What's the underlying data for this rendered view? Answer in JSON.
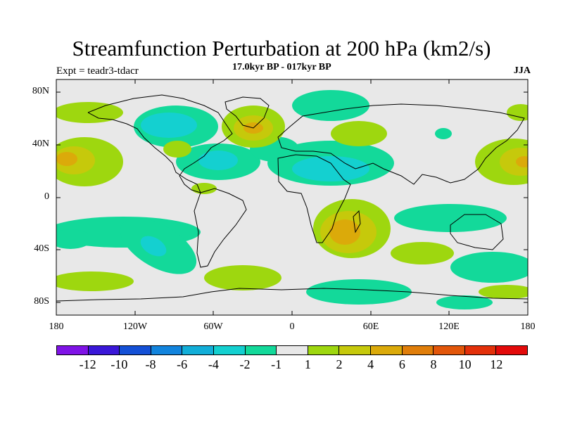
{
  "title": "Streamfunction Perturbation at 200 hPa (km2/s)",
  "experiment": "Expt = teadr3-tdacr",
  "period": "17.0kyr BP - 017kyr BP",
  "season": "JJA",
  "lat_labels": [
    "80N",
    "40N",
    "0",
    "40S",
    "80S"
  ],
  "lon_labels": [
    "180",
    "120W",
    "60W",
    "0",
    "60E",
    "120E",
    "180"
  ],
  "colorbar": {
    "colors": [
      "#7f13e6",
      "#3a17d8",
      "#1450d6",
      "#1284dd",
      "#12aed8",
      "#14d0d0",
      "#13d99a",
      "#e8e8e8",
      "#9ed70f",
      "#c6c90b",
      "#dbaa0a",
      "#e07e0a",
      "#e2560a",
      "#e3300a",
      "#e30a0a"
    ],
    "labels": [
      "-12",
      "-10",
      "-8",
      "-6",
      "-4",
      "-2",
      "-1",
      "1",
      "2",
      "4",
      "6",
      "8",
      "10",
      "12"
    ]
  },
  "colors": {
    "background": "#e8e8e8",
    "teal": "#13d99a",
    "cyan": "#14d0d0",
    "lime": "#9ed70f",
    "yellow": "#c6c90b",
    "orange": "#dbaa0a"
  }
}
